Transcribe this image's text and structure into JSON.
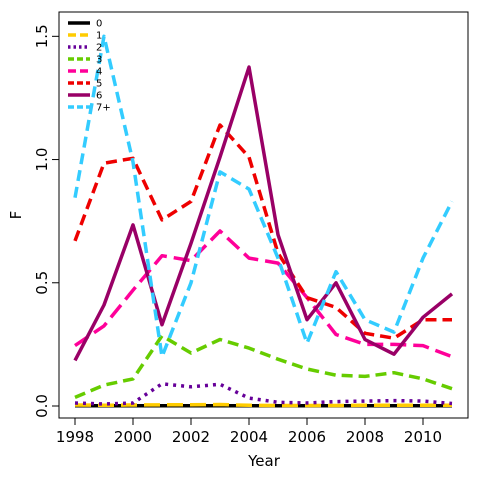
{
  "chart_data": {
    "type": "line",
    "title": "",
    "xlabel": "Year",
    "ylabel": "F",
    "xlim": [
      1998,
      2011
    ],
    "ylim": [
      0,
      1.55
    ],
    "xticks": [
      1998,
      2000,
      2002,
      2004,
      2006,
      2008,
      2010
    ],
    "xtick_labels": [
      "1998",
      "2000",
      "2002",
      "2004",
      "2006",
      "2008",
      "2010"
    ],
    "yticks": [
      0.0,
      0.5,
      1.0,
      1.5
    ],
    "ytick_labels": [
      "0.0",
      "0.5",
      "1.0",
      "1.5"
    ],
    "grid": false,
    "legend_position": "top-left",
    "x": [
      1998,
      1999,
      2000,
      2001,
      2002,
      2003,
      2004,
      2005,
      2006,
      2007,
      2008,
      2009,
      2010,
      2011
    ],
    "series": [
      {
        "name": "0",
        "color": "#000000",
        "dash": "solid",
        "values": [
          0.001,
          0.001,
          0.001,
          0.001,
          0.001,
          0.001,
          0.001,
          0.001,
          0.001,
          0.001,
          0.001,
          0.001,
          0.001,
          0.001
        ]
      },
      {
        "name": "1",
        "color": "#FFCC00",
        "dash": "long-dash",
        "values": [
          0.004,
          0.003,
          0.004,
          0.005,
          0.005,
          0.006,
          0.003,
          0.002,
          0.002,
          0.002,
          0.003,
          0.003,
          0.003,
          0.003
        ]
      },
      {
        "name": "2",
        "color": "#660099",
        "dash": "dot",
        "values": [
          0.012,
          0.008,
          0.012,
          0.09,
          0.078,
          0.088,
          0.032,
          0.015,
          0.012,
          0.018,
          0.02,
          0.022,
          0.02,
          0.01
        ]
      },
      {
        "name": "3",
        "color": "#66CC00",
        "dash": "dash",
        "values": [
          0.035,
          0.085,
          0.11,
          0.285,
          0.215,
          0.27,
          0.235,
          0.19,
          0.15,
          0.125,
          0.12,
          0.135,
          0.11,
          0.07
        ]
      },
      {
        "name": "4",
        "color": "#FF0099",
        "dash": "long-dash",
        "values": [
          0.245,
          0.325,
          0.47,
          0.61,
          0.59,
          0.71,
          0.6,
          0.58,
          0.44,
          0.29,
          0.25,
          0.25,
          0.245,
          0.2
        ]
      },
      {
        "name": "5",
        "color": "#EE0000",
        "dash": "dash",
        "values": [
          0.67,
          0.985,
          1.005,
          0.755,
          0.83,
          1.14,
          1.01,
          0.62,
          0.44,
          0.4,
          0.295,
          0.275,
          0.35,
          0.35
        ]
      },
      {
        "name": "6",
        "color": "#990066",
        "dash": "solid",
        "values": [
          0.185,
          0.41,
          0.735,
          0.33,
          0.66,
          1.01,
          1.375,
          0.695,
          0.35,
          0.5,
          0.27,
          0.21,
          0.36,
          0.455
        ]
      },
      {
        "name": "7+",
        "color": "#33CCFF",
        "dash": "dash",
        "values": [
          0.845,
          1.5,
          0.99,
          0.2,
          0.5,
          0.95,
          0.88,
          0.6,
          0.255,
          0.545,
          0.35,
          0.3,
          0.6,
          0.83
        ]
      }
    ]
  }
}
